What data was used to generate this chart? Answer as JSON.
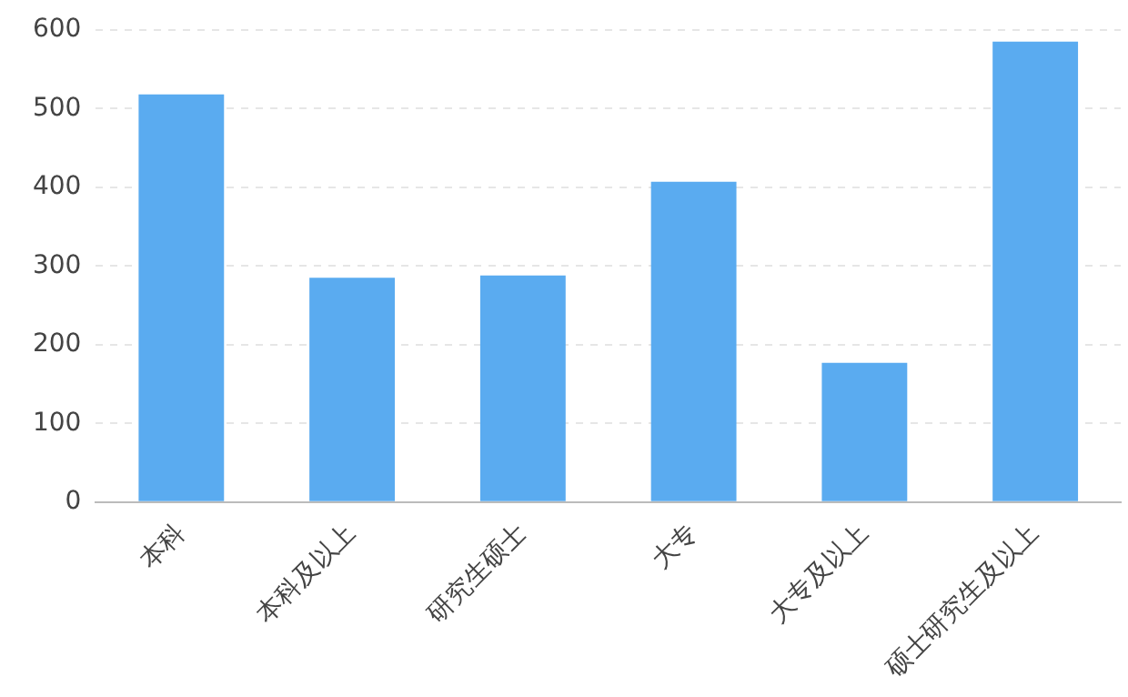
{
  "chart_data": {
    "type": "bar",
    "categories": [
      "本科",
      "本科及以上",
      "研究生硕士",
      "大专",
      "大专及以上",
      "硕士研究生及以上"
    ],
    "values": [
      518,
      285,
      288,
      407,
      177,
      585
    ],
    "color": "#5aabf0",
    "ylim": [
      0,
      600
    ],
    "yticks": [
      0,
      100,
      200,
      300,
      400,
      500,
      600
    ],
    "grid": "y",
    "legend": false
  }
}
